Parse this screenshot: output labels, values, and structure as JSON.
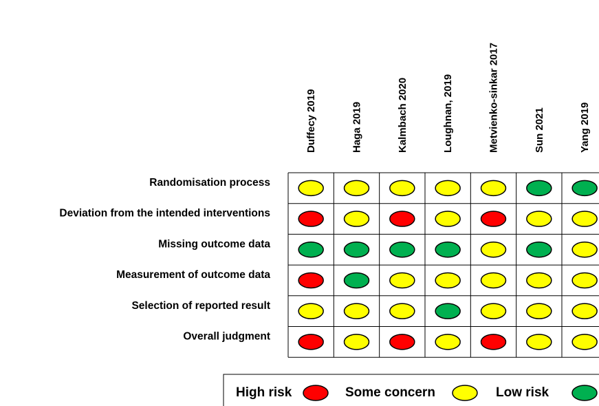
{
  "studies": [
    "Duffecy 2019",
    "Haga 2019",
    "Kalmbach 2020",
    "Loughnan, 2019",
    "Metvienko-sinkar 2017",
    "Sun 2021",
    "Yang 2019"
  ],
  "domains": [
    "Randomisation process",
    "Deviation from the intended interventions",
    "Missing outcome data",
    "Measurement of outcome data",
    "Selection of reported result",
    "Overall judgment"
  ],
  "judgments": [
    [
      "some",
      "some",
      "some",
      "some",
      "some",
      "low",
      "low"
    ],
    [
      "high",
      "some",
      "high",
      "some",
      "high",
      "some",
      "some"
    ],
    [
      "low",
      "low",
      "low",
      "low",
      "some",
      "low",
      "some"
    ],
    [
      "high",
      "low",
      "some",
      "some",
      "some",
      "some",
      "some"
    ],
    [
      "some",
      "some",
      "some",
      "low",
      "some",
      "some",
      "some"
    ],
    [
      "high",
      "some",
      "high",
      "some",
      "high",
      "some",
      "some"
    ]
  ],
  "legend": {
    "high": "High risk",
    "some": "Some concern",
    "low": "Low risk"
  },
  "colors": {
    "high": "#ff0000",
    "some": "#ffff00",
    "low": "#00b050",
    "outline": "#000000"
  }
}
